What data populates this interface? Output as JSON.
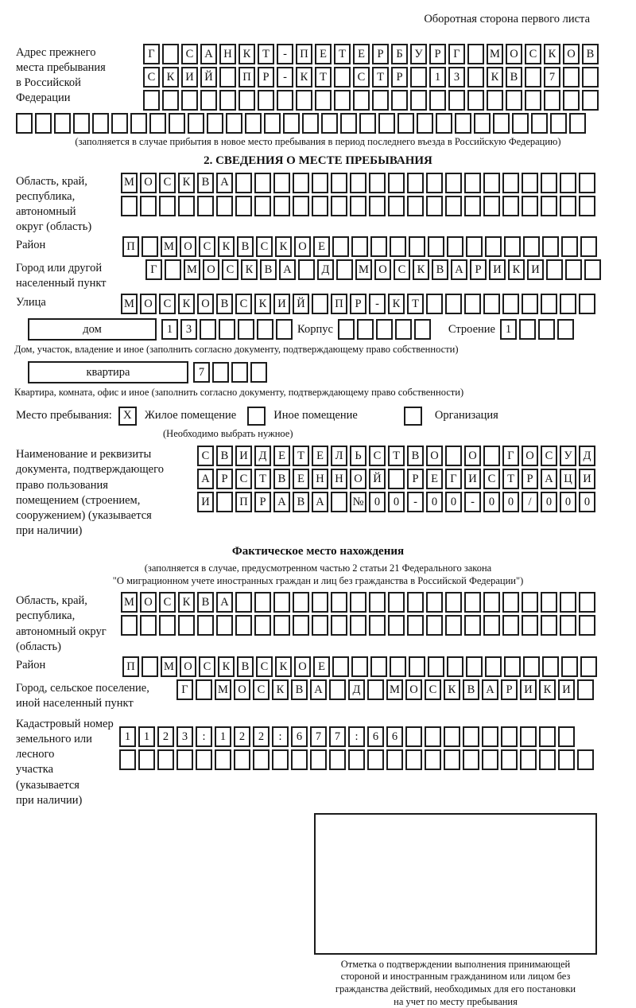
{
  "page_title": "Оборотная сторона первого листа",
  "section1": {
    "label": "Адрес прежнего\nместа пребывания\nв Российской\nФедерации",
    "rows": [
      {
        "chars": "Г_САНКТ-ПЕТЕРБУРГ_МОСКОВ",
        "count": 24
      },
      {
        "chars": "СКИЙ_ПР-КТ_СТР_13_КВ_7",
        "count": 24
      },
      {
        "chars": "",
        "count": 24
      }
    ],
    "full_row": {
      "chars": "",
      "count": 30
    },
    "caption": "(заполняется в случае прибытия в новое место пребывания в период последнего въезда в Российскую Федерацию)"
  },
  "section2": {
    "heading": "2. СВЕДЕНИЯ О МЕСТЕ ПРЕБЫВАНИЯ",
    "oblast": {
      "label": "Область, край,\nреспублика,\nавтономный\nокруг (область)",
      "rows": [
        {
          "chars": "МОСКВА",
          "count": 25
        },
        {
          "chars": "",
          "count": 25
        }
      ]
    },
    "raion": {
      "label": "Район",
      "row": {
        "chars": "П_МОСКВСКОЕ",
        "count": 25
      }
    },
    "gorod": {
      "label": "Город или другой\nнаселенный пункт",
      "row": {
        "chars": "Г_МОСКВА_Д_МОСКВАРИКИ",
        "count": 24
      }
    },
    "ulitsa": {
      "label": "Улица",
      "row": {
        "chars": "МОСКОВСКИЙ_ПР-КТ",
        "count": 25
      }
    },
    "dom": {
      "box_label": "дом",
      "cells": {
        "chars": "13",
        "count": 7
      },
      "korpus_label": "Корпус",
      "korpus_cells": {
        "chars": "",
        "count": 5
      },
      "stroenie_label": "Строение",
      "stroenie_cells": {
        "chars": "1",
        "count": 4
      },
      "caption": "Дом, участок, владение и иное (заполнить согласно документу, подтверждающему право собственности)"
    },
    "kvartira": {
      "box_label": "квартира",
      "cells": {
        "chars": "7",
        "count": 4
      },
      "caption": "Квартира, комната, офис и иное (заполнить согласно документу, подтверждающему право собственности)"
    },
    "mesto": {
      "label": "Место пребывания:",
      "options": [
        {
          "label": "Жилое помещение",
          "mark": "X"
        },
        {
          "label": "Иное помещение",
          "mark": ""
        },
        {
          "label": "Организация",
          "mark": ""
        }
      ],
      "caption": "(Необходимо выбрать нужное)"
    },
    "document": {
      "label": "Наименование и реквизиты\nдокумента, подтверждающего\nправо пользования\nпомещением (строением,\nсооружением) (указывается\nпри наличии)",
      "rows": [
        {
          "chars": "СВИДЕТЕЛЬСТВО_О_ГОСУД",
          "count": 21
        },
        {
          "chars": "АРСТВЕННОЙ_РЕГИСТРАЦИ",
          "count": 21
        },
        {
          "chars": "И_ПРАВА_№00-00-00/000",
          "count": 21
        }
      ]
    }
  },
  "fact": {
    "heading": "Фактическое место нахождения",
    "caption_line1": "(заполняется в случае, предусмотренном частью 2 статьи 21 Федерального закона",
    "caption_line2": "\"О миграционном учете иностранных граждан и лиц без гражданства в Российской Федерации\")",
    "oblast": {
      "label": "Область, край,\nреспублика,\nавтономный округ\n(область)",
      "rows": [
        {
          "chars": "МОСКВА",
          "count": 25
        },
        {
          "chars": "",
          "count": 25
        }
      ]
    },
    "raion": {
      "label": "Район",
      "row": {
        "chars": "П_МОСКВСКОЕ",
        "count": 25
      }
    },
    "gorod": {
      "label": "Город, сельское поселение,\nиной населенный пункт",
      "row": {
        "chars": "Г_МОСКВА_Д_МОСКВАРИКИ",
        "count": 22
      }
    },
    "kadastr": {
      "label": "Кадастровый номер\nземельного или лесного\nучастка (указывается\nпри наличии)",
      "rows": [
        {
          "chars": "1123:122:677:66",
          "count": 24
        },
        {
          "chars": "",
          "count": 25
        }
      ]
    },
    "confirmation_caption": "Отметка о подтверждении выполнения принимающей\nстороной и иностранным гражданином или лицом без\nгражданства действий, необходимых для его постановки\nна учет по месту пребывания"
  }
}
